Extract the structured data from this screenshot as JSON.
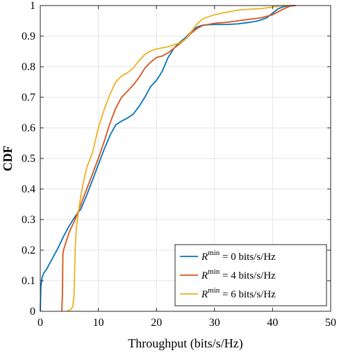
{
  "chart_data": {
    "type": "line",
    "xlabel": "Throughput (bits/s/Hz)",
    "ylabel": "CDF",
    "xlim": [
      0,
      50
    ],
    "ylim": [
      0,
      1
    ],
    "xticks": [
      "0",
      "10",
      "20",
      "30",
      "40",
      "50"
    ],
    "yticks": [
      "0",
      "0.1",
      "0.2",
      "0.3",
      "0.4",
      "0.5",
      "0.6",
      "0.7",
      "0.8",
      "0.9",
      "1"
    ],
    "grid": true,
    "legend_position": "bottom-right",
    "series": [
      {
        "name_var": "R",
        "name_sup": "min",
        "name_rest": " = 0 bits/s/Hz",
        "color": "#0072BD",
        "x": [
          0,
          0.1,
          0.3,
          0.6,
          1.0,
          2.0,
          3.0,
          4.0,
          5.0,
          6.0,
          7.0,
          8.0,
          9.0,
          10.0,
          11.0,
          12.0,
          13.0,
          14.0,
          15.0,
          16.0,
          17.0,
          18.0,
          19.0,
          20.0,
          21.0,
          22.0,
          23.0,
          24.0,
          25.0,
          26.0,
          27.0,
          28.0,
          30.0,
          32.0,
          34.0,
          36.0,
          37.5,
          39.0,
          40.0,
          41.0,
          42.0,
          43.0,
          44.0
        ],
        "y": [
          0,
          0.08,
          0.11,
          0.125,
          0.135,
          0.17,
          0.205,
          0.245,
          0.28,
          0.31,
          0.335,
          0.38,
          0.43,
          0.48,
          0.53,
          0.575,
          0.61,
          0.622,
          0.632,
          0.645,
          0.67,
          0.7,
          0.735,
          0.755,
          0.785,
          0.83,
          0.86,
          0.88,
          0.895,
          0.915,
          0.93,
          0.936,
          0.938,
          0.938,
          0.94,
          0.945,
          0.95,
          0.96,
          0.975,
          0.99,
          0.997,
          1.0,
          1.0
        ]
      },
      {
        "name_var": "R",
        "name_sup": "min",
        "name_rest": " = 4 bits/s/Hz",
        "color": "#D95319",
        "x": [
          3.7,
          3.8,
          3.85,
          3.9,
          4.0,
          4.5,
          5.0,
          6.0,
          7.0,
          8.0,
          9.0,
          10.0,
          11.0,
          12.0,
          13.0,
          14.0,
          15.0,
          16.0,
          17.0,
          18.0,
          19.0,
          20.0,
          21.0,
          22.0,
          23.0,
          24.0,
          25.0,
          26.0,
          27.0,
          28.0,
          30.0,
          32.0,
          34.0,
          36.0,
          38.0,
          40.0,
          42.0,
          43.0,
          44.0
        ],
        "y": [
          0,
          0.05,
          0.12,
          0.19,
          0.2,
          0.23,
          0.26,
          0.3,
          0.35,
          0.4,
          0.45,
          0.5,
          0.555,
          0.615,
          0.665,
          0.7,
          0.72,
          0.74,
          0.765,
          0.795,
          0.815,
          0.83,
          0.835,
          0.845,
          0.86,
          0.875,
          0.89,
          0.91,
          0.925,
          0.935,
          0.942,
          0.945,
          0.95,
          0.955,
          0.96,
          0.97,
          0.99,
          0.998,
          1.0
        ]
      },
      {
        "name_var": "R",
        "name_sup": "min",
        "name_rest": " = 6 bits/s/Hz",
        "color": "#EDB120",
        "x": [
          4.6,
          5.2,
          5.6,
          5.8,
          5.9,
          6.0,
          6.2,
          6.6,
          7.0,
          7.5,
          8.0,
          9.0,
          10.0,
          11.0,
          12.0,
          13.0,
          14.0,
          15.0,
          16.0,
          17.0,
          18.0,
          19.0,
          20.0,
          22.0,
          24.0,
          25.0,
          26.0,
          27.0,
          28.0,
          30.0,
          32.0,
          34.0,
          36.0,
          38.0,
          40.0,
          41.0,
          42.0,
          43.0
        ],
        "y": [
          0,
          0.005,
          0.015,
          0.05,
          0.12,
          0.2,
          0.27,
          0.33,
          0.38,
          0.43,
          0.47,
          0.52,
          0.6,
          0.66,
          0.71,
          0.75,
          0.77,
          0.78,
          0.795,
          0.82,
          0.84,
          0.852,
          0.858,
          0.865,
          0.878,
          0.89,
          0.915,
          0.94,
          0.957,
          0.97,
          0.978,
          0.985,
          0.988,
          0.99,
          0.995,
          0.998,
          1.0,
          1.0
        ]
      }
    ]
  }
}
